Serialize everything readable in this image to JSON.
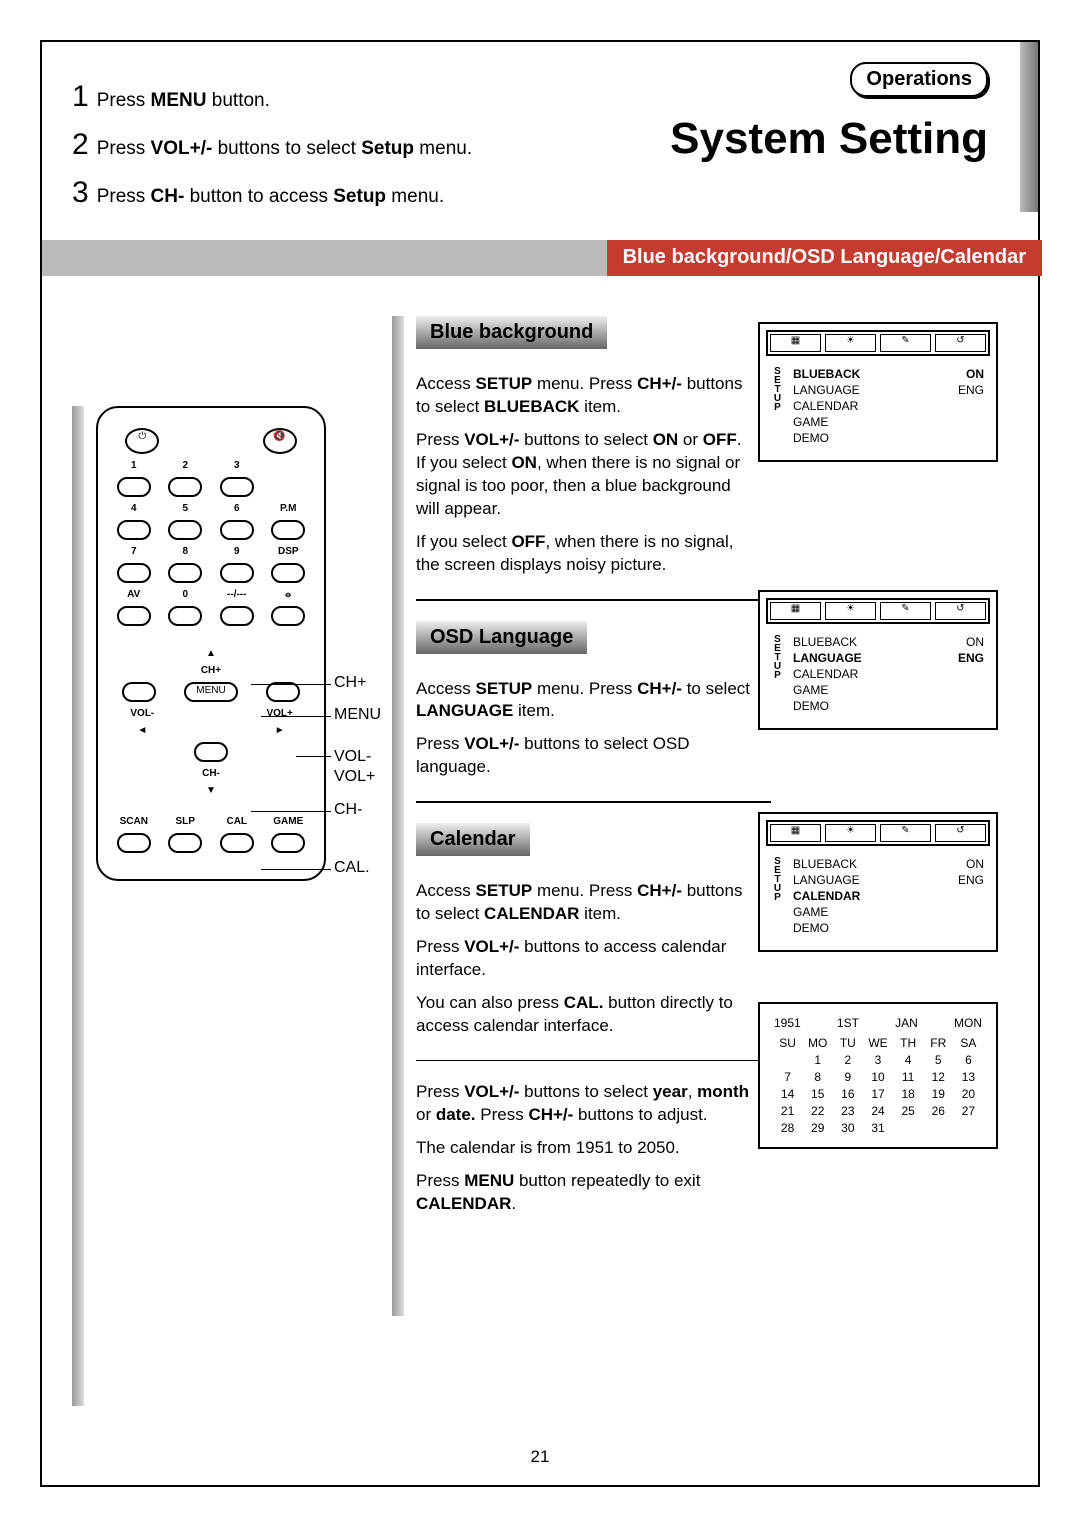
{
  "operations_label": "Operations",
  "page_title": "System Setting",
  "steps": [
    {
      "n": "1",
      "pre": "Press ",
      "b": "MENU",
      "post": " button."
    },
    {
      "n": "2",
      "pre": "Press ",
      "b": "VOL+/-",
      "mid": " buttons to select ",
      "b2": "Setup",
      "post": " menu."
    },
    {
      "n": "3",
      "pre": "Press ",
      "b": "CH-",
      "mid": " button to access ",
      "b2": "Setup",
      "post": " menu."
    }
  ],
  "banner_text": "Blue background/OSD Language/Calendar",
  "sections": {
    "blueback": {
      "heading": "Blue background",
      "p1a": "Access ",
      "p1b": "SETUP",
      "p1c": " menu. Press ",
      "p1d": "CH+/-",
      "p1e": " buttons to select ",
      "p1f": "BLUEBACK",
      "p1g": " item.",
      "p2a": "Press ",
      "p2b": "VOL+/-",
      "p2c": " buttons to select ",
      "p2d": "ON",
      "p2e": " or ",
      "p2f": "OFF",
      "p2g": ".",
      "p3a": "If you select ",
      "p3b": "ON",
      "p3c": ", when there is no signal or signal is too poor, then a blue background will appear.",
      "p4a": "If you select ",
      "p4b": "OFF",
      "p4c": ", when there is no signal, the screen displays noisy picture."
    },
    "osd": {
      "heading": "OSD Language",
      "p1a": "Access ",
      "p1b": "SETUP",
      "p1c": " menu. Press ",
      "p1d": "CH+/-",
      "p1e": " to select ",
      "p1f": "LANGUAGE",
      "p1g": " item.",
      "p2a": "Press ",
      "p2b": "VOL+/-",
      "p2c": " buttons to select OSD language."
    },
    "cal": {
      "heading": "Calendar",
      "p1a": "Access ",
      "p1b": "SETUP",
      "p1c": " menu. Press ",
      "p1d": "CH+/-",
      "p1e": " buttons to select ",
      "p1f": "CALENDAR",
      "p1g": " item.",
      "p2a": "Press ",
      "p2b": "VOL+/-",
      "p2c": " buttons to access calendar interface.",
      "p3a": "You can also press ",
      "p3b": "CAL.",
      "p3c": " button directly to access calendar interface.",
      "p4a": "Press ",
      "p4b": "VOL+/-",
      "p4c": " buttons to select ",
      "p4d": "year",
      "p4e": ", ",
      "p4f": "month",
      "p4g": " or ",
      "p4h": "date.",
      "p4i": " Press ",
      "p4j": "CH+/-",
      "p4k": " buttons to adjust.",
      "p5": "The calendar is from 1951 to 2050.",
      "p6a": "Press ",
      "p6b": "MENU",
      "p6c": " button repeatedly to exit ",
      "p6d": "CALENDAR",
      "p6e": "."
    }
  },
  "osdscreens": {
    "setup_label": "SETUP",
    "items": [
      "BLUEBACK",
      "LANGUAGE",
      "CALENDAR",
      "GAME",
      "DEMO"
    ],
    "vals": [
      "ON",
      "ENG",
      "",
      "",
      ""
    ]
  },
  "calendar": {
    "header": [
      "1951",
      "1ST",
      "JAN",
      "MON"
    ],
    "daynames": [
      "SU",
      "MO",
      "TU",
      "WE",
      "TH",
      "FR",
      "SA"
    ],
    "rows": [
      [
        "",
        "1",
        "2",
        "3",
        "4",
        "5",
        "6"
      ],
      [
        "7",
        "8",
        "9",
        "10",
        "11",
        "12",
        "13"
      ],
      [
        "14",
        "15",
        "16",
        "17",
        "18",
        "19",
        "20"
      ],
      [
        "21",
        "22",
        "23",
        "24",
        "25",
        "26",
        "27"
      ],
      [
        "28",
        "29",
        "30",
        "31",
        "",
        "",
        ""
      ]
    ]
  },
  "remote_labels": {
    "ch_plus": "CH+",
    "menu": "MENU",
    "vol_minus": "VOL-",
    "vol_plus": "VOL+",
    "ch_minus": "CH-",
    "cal": "CAL."
  },
  "remote": {
    "nums": [
      "1",
      "2",
      "3",
      "4",
      "5",
      "6",
      "7",
      "8",
      "9"
    ],
    "pm": "P.M",
    "dsp": "DSP",
    "av": "AV",
    "zero": "0",
    "dash": "--/---",
    "chp": "CH+",
    "menu": "MENU",
    "voln": "VOL-",
    "volp": "VOL+",
    "chn": "CH-",
    "scan": "SCAN",
    "slp": "SLP",
    "calb": "CAL",
    "game": "GAME"
  },
  "page_number": "21"
}
